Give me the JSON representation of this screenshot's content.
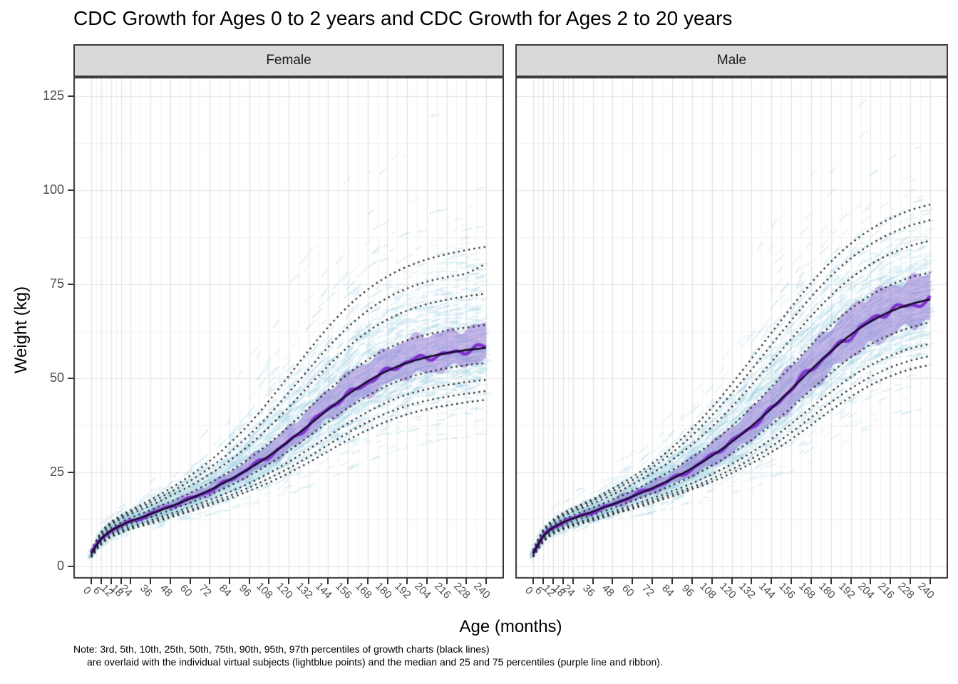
{
  "title": "CDC Growth for Ages 0 to 2 years and CDC Growth for Ages 2 to 20 years",
  "facets": [
    "Female",
    "Male"
  ],
  "axes": {
    "x": {
      "title": "Age (months)",
      "ticks": [
        0,
        6,
        12,
        18,
        24,
        36,
        48,
        60,
        72,
        84,
        96,
        108,
        120,
        132,
        144,
        156,
        168,
        180,
        192,
        204,
        216,
        228,
        240
      ],
      "range": [
        0,
        240
      ]
    },
    "y": {
      "title": "Weight (kg)",
      "ticks": [
        0,
        25,
        50,
        75,
        100,
        125
      ],
      "range": [
        0,
        131
      ]
    }
  },
  "note": {
    "line1": "Note: 3rd, 5th, 10th, 25th, 50th, 75th, 90th, 95th, 97th percentiles of growth charts (black lines)",
    "line2": "are overlaid with the individual virtual subjects (lightblue points) and the median and 25 and 75 percentiles (purple line and ribbon)."
  },
  "colors": {
    "strip_background": "#d9d9d9",
    "strip_border": "#3c3c3c",
    "panel_border": "#333333",
    "grid_major": "#e3e3e3",
    "grid_minor": "#f2f2f2",
    "percentile_lines": "#242424",
    "subject_points": "#a5d5e6",
    "ribbon_fill": "#8c69d2",
    "median_line_wiggly": "#7d28cc",
    "median_line_smooth": "#170a2e",
    "axis_text": "#4d4d4d"
  },
  "chart_data": {
    "type": "line",
    "title": "CDC Growth for Ages 0 to 2 years and CDC Growth for Ages 2 to 20 years",
    "xlabel": "Age (months)",
    "ylabel": "Weight (kg)",
    "xlim": [
      0,
      240
    ],
    "ylim": [
      0,
      131
    ],
    "grid": true,
    "legend_position": "none (described in bottom note)",
    "percentile_labels": [
      "3rd",
      "5th",
      "10th",
      "25th",
      "50th",
      "75th",
      "90th",
      "95th",
      "97th"
    ],
    "line_styles": {
      "growth_chart_percentiles": "black dotted",
      "virtual_subjects": "lightblue point streaks",
      "subject_median": "purple wiggly line",
      "subject_iqr": "purple ribbon (25th-75th)"
    },
    "ages_months": [
      0,
      6,
      12,
      18,
      24,
      36,
      48,
      60,
      72,
      84,
      96,
      108,
      120,
      132,
      144,
      156,
      168,
      180,
      192,
      204,
      216,
      228,
      240
    ],
    "facets": [
      {
        "name": "Female",
        "percentiles_kg": {
          "p3": [
            2.4,
            5.8,
            7.8,
            8.9,
            9.9,
            11.4,
            13.0,
            14.6,
            16.3,
            18.1,
            20.1,
            22.3,
            24.8,
            27.6,
            30.6,
            33.6,
            36.3,
            38.6,
            40.4,
            41.8,
            42.8,
            43.6,
            44.3
          ],
          "p5": [
            2.5,
            6.0,
            8.0,
            9.2,
            10.2,
            11.8,
            13.4,
            15.1,
            16.9,
            18.8,
            21.0,
            23.4,
            26.1,
            29.1,
            32.3,
            35.5,
            38.4,
            40.8,
            42.7,
            44.1,
            45.1,
            45.9,
            46.6
          ],
          "p10": [
            2.7,
            6.3,
            8.4,
            9.6,
            10.6,
            12.3,
            14.0,
            15.8,
            17.7,
            19.8,
            22.1,
            24.8,
            27.8,
            31.1,
            34.6,
            38.0,
            41.1,
            43.7,
            45.7,
            47.1,
            48.2,
            49.0,
            49.6
          ],
          "p25": [
            3.0,
            6.8,
            8.9,
            10.2,
            11.3,
            13.1,
            15.0,
            16.9,
            19.0,
            21.4,
            24.1,
            27.2,
            30.7,
            34.5,
            38.4,
            42.1,
            45.4,
            48.1,
            50.1,
            51.6,
            52.7,
            53.5,
            54.1
          ],
          "p50": [
            3.4,
            7.3,
            9.5,
            10.9,
            12.0,
            13.9,
            15.9,
            18.0,
            20.3,
            23.0,
            26.0,
            29.4,
            33.3,
            37.5,
            41.7,
            45.7,
            49.2,
            52.0,
            54.1,
            55.6,
            56.7,
            57.5,
            58.1
          ],
          "p75": [
            3.7,
            7.9,
            10.2,
            11.7,
            12.9,
            15.0,
            17.2,
            19.5,
            22.2,
            25.2,
            28.7,
            32.7,
            37.2,
            42.0,
            46.8,
            51.2,
            54.9,
            57.9,
            60.1,
            61.6,
            62.7,
            63.5,
            64.2
          ],
          "p90": [
            4.0,
            8.5,
            11.0,
            12.6,
            13.9,
            16.2,
            18.7,
            21.4,
            24.5,
            28.1,
            32.2,
            37.0,
            42.3,
            47.9,
            53.3,
            58.3,
            62.4,
            65.6,
            68.0,
            69.7,
            70.9,
            71.8,
            72.5
          ],
          "p95": [
            4.2,
            8.8,
            11.4,
            13.1,
            14.5,
            17.0,
            19.7,
            22.7,
            26.2,
            30.2,
            34.9,
            40.2,
            46.2,
            52.3,
            58.3,
            63.6,
            68.0,
            71.4,
            73.9,
            75.7,
            76.9,
            77.9,
            80.5
          ],
          "p97": [
            4.3,
            9.1,
            11.8,
            13.5,
            15.0,
            17.7,
            20.7,
            24.1,
            28.0,
            32.6,
            37.9,
            44.0,
            50.6,
            57.3,
            63.6,
            69.1,
            73.6,
            77.1,
            79.7,
            81.6,
            83.0,
            84.1,
            85.0
          ]
        }
      },
      {
        "name": "Male",
        "percentiles_kg": {
          "p3": [
            2.5,
            6.4,
            8.6,
            9.8,
            10.7,
            12.2,
            13.8,
            15.3,
            16.9,
            18.6,
            20.5,
            22.5,
            24.8,
            27.4,
            30.4,
            33.8,
            37.6,
            41.5,
            45.1,
            48.2,
            50.6,
            52.4,
            53.6
          ],
          "p5": [
            2.6,
            6.6,
            8.8,
            10.0,
            11.0,
            12.5,
            14.1,
            15.7,
            17.4,
            19.2,
            21.1,
            23.3,
            25.8,
            28.6,
            31.9,
            35.6,
            39.6,
            43.6,
            47.3,
            50.4,
            52.9,
            54.7,
            56.0
          ],
          "p10": [
            2.8,
            6.9,
            9.1,
            10.3,
            11.3,
            12.9,
            14.6,
            16.3,
            18.1,
            20.0,
            22.1,
            24.5,
            27.2,
            30.3,
            33.9,
            37.9,
            42.2,
            46.4,
            50.3,
            53.5,
            56.0,
            57.9,
            59.2
          ],
          "p25": [
            3.1,
            7.4,
            9.7,
            11.0,
            12.0,
            13.7,
            15.5,
            17.4,
            19.4,
            21.6,
            24.0,
            26.8,
            30.0,
            33.6,
            37.7,
            42.2,
            46.9,
            51.5,
            55.6,
            59.0,
            61.6,
            63.5,
            64.9
          ],
          "p50": [
            3.5,
            7.9,
            10.3,
            11.7,
            12.7,
            14.6,
            16.5,
            18.6,
            20.8,
            23.3,
            26.1,
            29.4,
            33.1,
            37.3,
            42.0,
            47.1,
            52.3,
            57.2,
            61.6,
            65.1,
            67.8,
            69.7,
            71.0
          ],
          "p75": [
            3.8,
            8.5,
            11.0,
            12.5,
            13.6,
            15.6,
            17.8,
            20.1,
            22.7,
            25.6,
            29.0,
            32.9,
            37.3,
            42.3,
            47.7,
            53.3,
            58.9,
            64.1,
            68.5,
            72.1,
            74.8,
            76.8,
            78.2
          ],
          "p90": [
            4.1,
            9.1,
            11.7,
            13.3,
            14.5,
            16.7,
            19.1,
            21.8,
            24.8,
            28.3,
            32.4,
            37.1,
            42.4,
            48.2,
            54.3,
            60.5,
            66.5,
            72.0,
            76.6,
            80.3,
            83.1,
            85.2,
            86.6
          ],
          "p95": [
            4.3,
            9.4,
            12.1,
            13.8,
            15.0,
            17.4,
            20.0,
            22.9,
            26.3,
            30.2,
            34.8,
            40.1,
            46.0,
            52.3,
            58.9,
            65.4,
            71.6,
            77.2,
            81.9,
            85.6,
            88.5,
            90.6,
            92.1
          ],
          "p97": [
            4.4,
            9.7,
            12.4,
            14.2,
            15.5,
            17.9,
            20.7,
            23.8,
            27.4,
            31.6,
            36.6,
            42.2,
            48.5,
            55.2,
            62.1,
            68.9,
            75.3,
            81.0,
            85.8,
            89.6,
            92.5,
            94.7,
            96.2
          ]
        }
      }
    ]
  }
}
